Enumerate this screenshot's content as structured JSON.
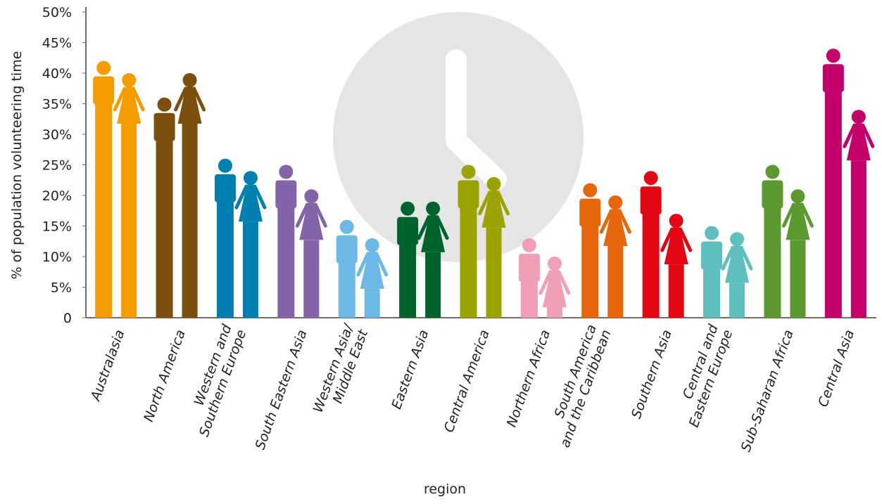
{
  "chart_data": {
    "type": "pictogram-bar",
    "y_label": "% of population volunteering time",
    "x_label": "region",
    "categories": [
      "Australasia",
      "North America",
      "Western and\nSouthern Europe",
      "South Eastern Asia",
      "Western Asia/\nMiddle East",
      "Eastern Asia",
      "Central America",
      "Northern Africa",
      "South America\nand the Caribbean",
      "Southern Asia",
      "Central and\nEastern Europe",
      "Sub-Saharan Africa",
      "Central Asia"
    ],
    "colors": [
      "#f59c00",
      "#7b4f0c",
      "#0080b0",
      "#8364a8",
      "#6cb9e6",
      "#00632e",
      "#9aa300",
      "#f19eb7",
      "#e66609",
      "#e30613",
      "#5fbfbf",
      "#5a9a31",
      "#c4006b"
    ],
    "series": [
      {
        "figure": "male",
        "values": [
          42,
          36,
          26,
          25,
          16,
          19,
          25,
          13,
          22,
          24,
          15,
          25,
          44
        ]
      },
      {
        "figure": "female",
        "values": [
          40,
          40,
          24,
          21,
          13,
          19,
          23,
          10,
          20,
          17,
          14,
          21,
          34
        ]
      }
    ],
    "ylim": [
      0,
      50
    ],
    "yticks": [
      0,
      {
        "value": 5,
        "label": "5%"
      },
      {
        "value": 10,
        "label": "10%"
      },
      {
        "value": 15,
        "label": "15%"
      },
      {
        "value": 20,
        "label": "20%"
      },
      {
        "value": 25,
        "label": "25%"
      },
      {
        "value": 30,
        "label": "30%"
      },
      {
        "value": 35,
        "label": "35%"
      },
      {
        "value": 40,
        "label": "40%"
      },
      {
        "value": 45,
        "label": "45%"
      },
      {
        "value": 50,
        "label": "50%"
      }
    ]
  }
}
